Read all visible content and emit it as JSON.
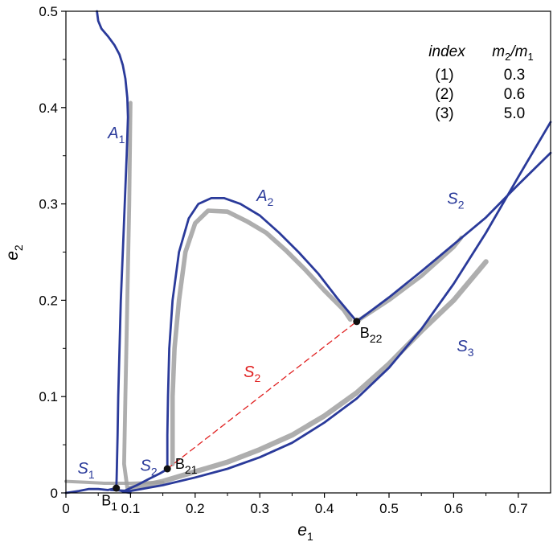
{
  "chart_data": {
    "type": "line",
    "title": "",
    "xlabel": {
      "main": "e",
      "sub": "1"
    },
    "ylabel": {
      "main": "e",
      "sub": "2"
    },
    "xlim": [
      0,
      0.75
    ],
    "ylim": [
      0,
      0.5
    ],
    "xticks": [
      "0",
      "0.1",
      "0.2",
      "0.3",
      "0.4",
      "0.5",
      "0.6",
      "0.7"
    ],
    "yticks": [
      "0",
      "0.1",
      "0.2",
      "0.3",
      "0.4",
      "0.5"
    ],
    "grid": false,
    "colors": {
      "model": "#2a3a9a",
      "simulation": "#a0a0a0",
      "dashed": "#e02020",
      "point": "#111111"
    },
    "series": [
      {
        "kind": "model",
        "label": {
          "main": "A",
          "sub": "1"
        },
        "label_at": [
          0.065,
          0.368
        ],
        "points": [
          [
            0.048,
            0.5
          ],
          [
            0.05,
            0.49
          ],
          [
            0.055,
            0.482
          ],
          [
            0.065,
            0.474
          ],
          [
            0.075,
            0.465
          ],
          [
            0.083,
            0.455
          ],
          [
            0.088,
            0.444
          ],
          [
            0.092,
            0.43
          ],
          [
            0.095,
            0.41
          ],
          [
            0.096,
            0.39
          ],
          [
            0.094,
            0.35
          ],
          [
            0.091,
            0.3
          ],
          [
            0.088,
            0.25
          ],
          [
            0.085,
            0.2
          ],
          [
            0.083,
            0.15
          ],
          [
            0.081,
            0.1
          ],
          [
            0.08,
            0.06
          ],
          [
            0.079,
            0.03
          ],
          [
            0.0785,
            0.015
          ],
          [
            0.078,
            0.005
          ]
        ]
      },
      {
        "kind": "model",
        "label": {
          "main": "S",
          "sub": "1"
        },
        "label_at": [
          0.018,
          0.02
        ],
        "points": [
          [
            0.0,
            0.0
          ],
          [
            0.02,
            0.002
          ],
          [
            0.035,
            0.004
          ],
          [
            0.05,
            0.004
          ],
          [
            0.065,
            0.003
          ],
          [
            0.078,
            0.005
          ],
          [
            0.082,
            0.003
          ],
          [
            0.09,
            0.001
          ],
          [
            0.1,
            0.0
          ]
        ]
      },
      {
        "kind": "model",
        "label": {
          "main": "S",
          "sub": "3"
        },
        "label_at": [
          0.605,
          0.147
        ],
        "points": [
          [
            0.07,
            0.003
          ],
          [
            0.1,
            0.002
          ],
          [
            0.15,
            0.008
          ],
          [
            0.2,
            0.016
          ],
          [
            0.25,
            0.025
          ],
          [
            0.3,
            0.037
          ],
          [
            0.35,
            0.052
          ],
          [
            0.4,
            0.073
          ],
          [
            0.45,
            0.098
          ],
          [
            0.5,
            0.13
          ],
          [
            0.55,
            0.17
          ],
          [
            0.6,
            0.217
          ],
          [
            0.65,
            0.27
          ],
          [
            0.7,
            0.328
          ],
          [
            0.75,
            0.385
          ]
        ]
      },
      {
        "kind": "model",
        "label": {
          "main": "S",
          "sub": "2"
        },
        "label_at": [
          0.115,
          0.023
        ],
        "points": [
          [
            0.09,
            0.002
          ],
          [
            0.11,
            0.008
          ],
          [
            0.13,
            0.015
          ],
          [
            0.145,
            0.02
          ],
          [
            0.158,
            0.025
          ]
        ]
      },
      {
        "kind": "model",
        "label": {
          "main": "A",
          "sub": "2"
        },
        "label_at": [
          0.295,
          0.303
        ],
        "points": [
          [
            0.157,
            0.025
          ],
          [
            0.157,
            0.06
          ],
          [
            0.158,
            0.1
          ],
          [
            0.16,
            0.15
          ],
          [
            0.165,
            0.2
          ],
          [
            0.175,
            0.25
          ],
          [
            0.19,
            0.285
          ],
          [
            0.205,
            0.3
          ],
          [
            0.225,
            0.306
          ],
          [
            0.245,
            0.306
          ],
          [
            0.27,
            0.3
          ],
          [
            0.3,
            0.288
          ],
          [
            0.33,
            0.27
          ],
          [
            0.36,
            0.25
          ],
          [
            0.39,
            0.228
          ],
          [
            0.42,
            0.202
          ],
          [
            0.45,
            0.178
          ]
        ]
      },
      {
        "kind": "model",
        "label": {
          "main": "S",
          "sub": "2"
        },
        "label_at": [
          0.59,
          0.3
        ],
        "points": [
          [
            0.45,
            0.178
          ],
          [
            0.5,
            0.203
          ],
          [
            0.55,
            0.23
          ],
          [
            0.6,
            0.258
          ],
          [
            0.65,
            0.286
          ],
          [
            0.7,
            0.32
          ],
          [
            0.75,
            0.353
          ]
        ]
      },
      {
        "kind": "dashed",
        "label": {
          "main": "S",
          "sub": "2"
        },
        "label_at": [
          0.275,
          0.12
        ],
        "points": [
          [
            0.157,
            0.025
          ],
          [
            0.45,
            0.178
          ]
        ]
      }
    ],
    "simulation_bands": [
      {
        "points": [
          [
            0.1,
            0.405
          ],
          [
            0.098,
            0.3
          ],
          [
            0.095,
            0.2
          ],
          [
            0.092,
            0.1
          ],
          [
            0.09,
            0.03
          ],
          [
            0.095,
            0.005
          ]
        ],
        "width": 0.006
      },
      {
        "points": [
          [
            0.165,
            0.03
          ],
          [
            0.165,
            0.1
          ],
          [
            0.168,
            0.15
          ],
          [
            0.175,
            0.2
          ],
          [
            0.185,
            0.25
          ],
          [
            0.2,
            0.28
          ],
          [
            0.22,
            0.293
          ],
          [
            0.25,
            0.292
          ],
          [
            0.28,
            0.282
          ],
          [
            0.31,
            0.27
          ],
          [
            0.34,
            0.252
          ],
          [
            0.37,
            0.232
          ],
          [
            0.4,
            0.21
          ],
          [
            0.43,
            0.19
          ],
          [
            0.44,
            0.18
          ]
        ],
        "width": 0.007
      },
      {
        "points": [
          [
            0.45,
            0.178
          ],
          [
            0.5,
            0.2
          ],
          [
            0.55,
            0.225
          ],
          [
            0.6,
            0.255
          ],
          [
            0.612,
            0.265
          ]
        ],
        "width": 0.006
      },
      {
        "points": [
          [
            0.1,
            0.005
          ],
          [
            0.15,
            0.012
          ],
          [
            0.2,
            0.022
          ],
          [
            0.25,
            0.032
          ],
          [
            0.3,
            0.045
          ],
          [
            0.35,
            0.06
          ],
          [
            0.4,
            0.08
          ],
          [
            0.45,
            0.104
          ],
          [
            0.5,
            0.134
          ],
          [
            0.55,
            0.168
          ],
          [
            0.6,
            0.2
          ],
          [
            0.65,
            0.24
          ]
        ],
        "width": 0.008
      },
      {
        "points": [
          [
            0.0,
            0.012
          ],
          [
            0.03,
            0.011
          ],
          [
            0.06,
            0.01
          ],
          [
            0.1,
            0.01
          ],
          [
            0.15,
            0.011
          ]
        ],
        "width": 0.005
      }
    ],
    "points": [
      {
        "label": {
          "main": "B",
          "sub": "1"
        },
        "x": 0.078,
        "y": 0.005,
        "label_offset": [
          -0.023,
          -0.018
        ]
      },
      {
        "label": {
          "main": "B",
          "sub": "21"
        },
        "x": 0.157,
        "y": 0.025,
        "label_offset": [
          0.012,
          0.0
        ]
      },
      {
        "label": {
          "main": "B",
          "sub": "22"
        },
        "x": 0.45,
        "y": 0.178,
        "label_offset": [
          0.005,
          -0.017
        ]
      }
    ],
    "legend_table": {
      "position": "top-right",
      "header": [
        {
          "main": "index",
          "sub": ""
        },
        {
          "main": "m",
          "sub": "2",
          "rest": "/m",
          "sub2": "1"
        }
      ],
      "rows": [
        [
          "(1)",
          "0.3"
        ],
        [
          "(2)",
          "0.6"
        ],
        [
          "(3)",
          "5.0"
        ]
      ]
    }
  }
}
